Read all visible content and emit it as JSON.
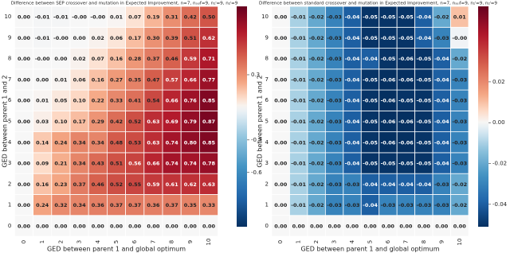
{
  "chart_data": [
    {
      "type": "heatmap",
      "colormap": "RdBu_r",
      "title": "Difference between SEP crossover and mutation in Expected Improvement, n=7, nₛₑₗf=9, n₁ⁱ=9, n₂ⁱ=9",
      "x_label": "GED between parent 1 and global optimum",
      "y_label": "GED between parent 1 and 2",
      "x": [
        0,
        1,
        2,
        3,
        4,
        5,
        6,
        7,
        8,
        9,
        10
      ],
      "y": [
        0,
        1,
        2,
        3,
        4,
        5,
        6,
        7,
        8,
        9,
        10
      ],
      "values": [
        [
          0,
          0,
          0,
          0,
          0,
          0,
          0,
          0,
          0,
          0,
          0
        ],
        [
          0,
          0.24,
          0.32,
          0.34,
          0.36,
          0.37,
          0.37,
          0.36,
          0.37,
          0.35,
          0.33
        ],
        [
          0,
          0.16,
          0.23,
          0.37,
          0.46,
          0.52,
          0.55,
          0.59,
          0.61,
          0.62,
          0.63
        ],
        [
          0,
          0.09,
          0.21,
          0.34,
          0.43,
          0.51,
          0.56,
          0.66,
          0.74,
          0.74,
          0.78
        ],
        [
          0,
          0.14,
          0.24,
          0.34,
          0.34,
          0.48,
          0.53,
          0.63,
          0.74,
          0.8,
          0.85
        ],
        [
          0,
          0.03,
          0.1,
          0.17,
          0.29,
          0.42,
          0.52,
          0.63,
          0.69,
          0.79,
          0.87
        ],
        [
          0,
          0.01,
          0.05,
          0.1,
          0.22,
          0.33,
          0.41,
          0.54,
          0.66,
          0.76,
          0.85
        ],
        [
          0,
          0,
          0.01,
          0.06,
          0.16,
          0.27,
          0.35,
          0.47,
          0.57,
          0.66,
          0.77
        ],
        [
          0,
          -0.001,
          0,
          0.02,
          0.07,
          0.16,
          0.28,
          0.37,
          0.46,
          0.59,
          0.71
        ],
        [
          0,
          -0.01,
          -0.001,
          0,
          0.02,
          0.06,
          0.17,
          0.3,
          0.39,
          0.51,
          0.62
        ],
        [
          0,
          -0.01,
          -0.01,
          -0.001,
          -0.001,
          0.01,
          0.07,
          0.19,
          0.31,
          0.42,
          0.5
        ]
      ],
      "value_labels": [
        [
          "0.00",
          "0.00",
          "0.00",
          "0.00",
          "0.00",
          "0.00",
          "0.00",
          "0.00",
          "0.00",
          "0.00",
          "0.00"
        ],
        [
          "0.00",
          "0.24",
          "0.32",
          "0.34",
          "0.36",
          "0.37",
          "0.37",
          "0.36",
          "0.37",
          "0.35",
          "0.33"
        ],
        [
          "0.00",
          "0.16",
          "0.23",
          "0.37",
          "0.46",
          "0.52",
          "0.55",
          "0.59",
          "0.61",
          "0.62",
          "0.63"
        ],
        [
          "0.00",
          "0.09",
          "0.21",
          "0.34",
          "0.43",
          "0.51",
          "0.56",
          "0.66",
          "0.74",
          "0.74",
          "0.78"
        ],
        [
          "0.00",
          "0.14",
          "0.24",
          "0.34",
          "0.34",
          "0.48",
          "0.53",
          "0.63",
          "0.74",
          "0.80",
          "0.85"
        ],
        [
          "0.00",
          "0.03",
          "0.10",
          "0.17",
          "0.29",
          "0.42",
          "0.52",
          "0.63",
          "0.69",
          "0.79",
          "0.87"
        ],
        [
          "0.00",
          "0.01",
          "0.05",
          "0.10",
          "0.22",
          "0.33",
          "0.41",
          "0.54",
          "0.66",
          "0.76",
          "0.85"
        ],
        [
          "0.00",
          "0.00",
          "0.01",
          "0.06",
          "0.16",
          "0.27",
          "0.35",
          "0.47",
          "0.57",
          "0.66",
          "0.77"
        ],
        [
          "0.00",
          "-0.00",
          "0.00",
          "0.02",
          "0.07",
          "0.16",
          "0.28",
          "0.37",
          "0.46",
          "0.59",
          "0.71"
        ],
        [
          "0.00",
          "-0.01",
          "-0.00",
          "0.00",
          "0.02",
          "0.06",
          "0.17",
          "0.30",
          "0.39",
          "0.51",
          "0.62"
        ],
        [
          "0.00",
          "-0.01",
          "-0.01",
          "-0.00",
          "-0.00",
          "0.01",
          "0.07",
          "0.19",
          "0.31",
          "0.42",
          "0.50"
        ]
      ],
      "clim": [
        -1.1,
        0.93
      ],
      "cticks": [
        0.3,
        -0.3,
        -0.6
      ]
    },
    {
      "type": "heatmap",
      "colormap": "RdBu_r",
      "title": "Difference between standard crossover and mutation in Expected Improvement, n=7, nₛₑₗf=9, n₁ⁱ=9, n₂ⁱ=9",
      "x_label": "GED between parent 1 and global optimum",
      "y_label": "GED between parent 1 and 2",
      "x": [
        0,
        1,
        2,
        3,
        4,
        5,
        6,
        7,
        8,
        9,
        10
      ],
      "y": [
        0,
        1,
        2,
        3,
        4,
        5,
        6,
        7,
        8,
        9,
        10
      ],
      "values": [
        [
          0,
          0,
          0,
          0,
          0,
          0,
          0,
          0,
          0,
          0,
          0
        ],
        [
          0,
          -0.01,
          -0.02,
          -0.03,
          -0.03,
          -0.04,
          -0.03,
          -0.03,
          -0.03,
          -0.03,
          -0.02
        ],
        [
          0,
          -0.01,
          -0.02,
          -0.03,
          -0.03,
          -0.04,
          -0.04,
          -0.04,
          -0.04,
          -0.03,
          -0.02
        ],
        [
          0,
          -0.01,
          -0.02,
          -0.03,
          -0.04,
          -0.05,
          -0.05,
          -0.05,
          -0.05,
          -0.04,
          -0.03
        ],
        [
          0,
          -0.01,
          -0.02,
          -0.03,
          -0.04,
          -0.05,
          -0.06,
          -0.06,
          -0.05,
          -0.04,
          -0.03
        ],
        [
          0,
          -0.01,
          -0.02,
          -0.03,
          -0.04,
          -0.05,
          -0.06,
          -0.06,
          -0.05,
          -0.04,
          -0.03
        ],
        [
          0,
          -0.01,
          -0.02,
          -0.03,
          -0.04,
          -0.05,
          -0.06,
          -0.05,
          -0.05,
          -0.04,
          -0.03
        ],
        [
          0,
          -0.01,
          -0.02,
          -0.03,
          -0.04,
          -0.05,
          -0.06,
          -0.06,
          -0.05,
          -0.04,
          -0.03
        ],
        [
          0,
          -0.01,
          -0.02,
          -0.03,
          -0.04,
          -0.04,
          -0.05,
          -0.06,
          -0.05,
          -0.04,
          -0.02
        ],
        [
          0,
          -0.01,
          -0.02,
          -0.03,
          -0.04,
          -0.05,
          -0.05,
          -0.05,
          -0.04,
          -0.03,
          -0.001
        ],
        [
          0,
          -0.01,
          -0.02,
          -0.03,
          -0.04,
          -0.05,
          -0.05,
          -0.05,
          -0.04,
          -0.02,
          0.01
        ]
      ],
      "value_labels": [
        [
          "0.00",
          "0.00",
          "0.00",
          "0.00",
          "0.00",
          "0.00",
          "0.00",
          "0.00",
          "0.00",
          "0.00",
          "0.00"
        ],
        [
          "0.00",
          "-0.01",
          "-0.02",
          "-0.03",
          "-0.03",
          "-0.04",
          "-0.03",
          "-0.03",
          "-0.03",
          "-0.03",
          "-0.02"
        ],
        [
          "0.00",
          "-0.01",
          "-0.02",
          "-0.03",
          "-0.03",
          "-0.04",
          "-0.04",
          "-0.04",
          "-0.04",
          "-0.03",
          "-0.02"
        ],
        [
          "0.00",
          "-0.01",
          "-0.02",
          "-0.03",
          "-0.04",
          "-0.05",
          "-0.05",
          "-0.05",
          "-0.05",
          "-0.04",
          "-0.03"
        ],
        [
          "0.00",
          "-0.01",
          "-0.02",
          "-0.03",
          "-0.04",
          "-0.05",
          "-0.06",
          "-0.06",
          "-0.05",
          "-0.04",
          "-0.03"
        ],
        [
          "0.00",
          "-0.01",
          "-0.02",
          "-0.03",
          "-0.04",
          "-0.05",
          "-0.06",
          "-0.06",
          "-0.05",
          "-0.04",
          "-0.03"
        ],
        [
          "0.00",
          "-0.01",
          "-0.02",
          "-0.03",
          "-0.04",
          "-0.05",
          "-0.06",
          "-0.05",
          "-0.05",
          "-0.04",
          "-0.03"
        ],
        [
          "0.00",
          "-0.01",
          "-0.02",
          "-0.03",
          "-0.04",
          "-0.05",
          "-0.06",
          "-0.06",
          "-0.05",
          "-0.04",
          "-0.03"
        ],
        [
          "0.00",
          "-0.01",
          "-0.02",
          "-0.03",
          "-0.04",
          "-0.04",
          "-0.05",
          "-0.06",
          "-0.05",
          "-0.04",
          "-0.02"
        ],
        [
          "0.00",
          "-0.01",
          "-0.02",
          "-0.03",
          "-0.04",
          "-0.05",
          "-0.05",
          "-0.05",
          "-0.04",
          "-0.03",
          "-0.00"
        ],
        [
          "0.00",
          "-0.01",
          "-0.02",
          "-0.03",
          "-0.04",
          "-0.05",
          "-0.05",
          "-0.05",
          "-0.04",
          "-0.02",
          "0.01"
        ]
      ],
      "clim": [
        -0.051,
        0.057
      ],
      "cticks": [
        0.02,
        {
          "value": 0,
          "label": "0.00"
        },
        -0.02,
        -0.04
      ]
    }
  ]
}
